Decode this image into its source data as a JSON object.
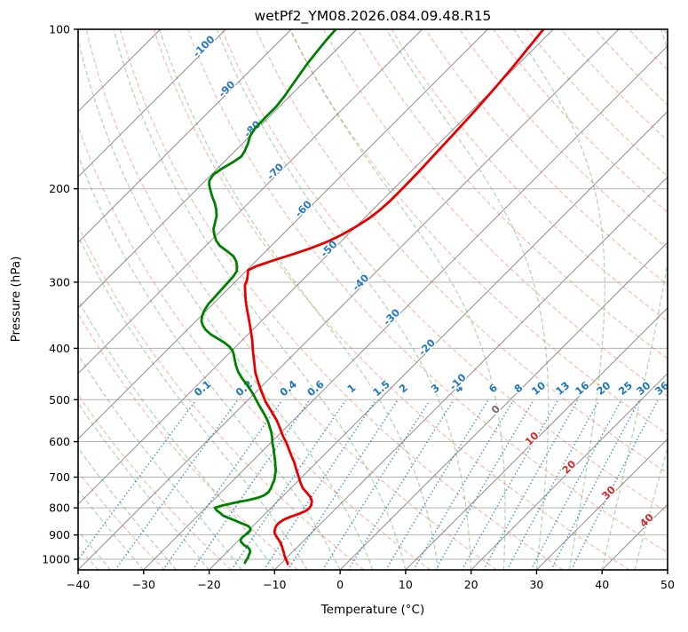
{
  "title": "wetPf2_YM08.2026.084.09.48.R15",
  "x_axis": {
    "label": "Temperature (°C)",
    "min": -40,
    "max": 50,
    "tick_values": [
      -40,
      -30,
      -20,
      -10,
      0,
      10,
      20,
      30,
      40,
      50
    ],
    "tick_labels": [
      "−40",
      "−30",
      "−20",
      "−10",
      "0",
      "10",
      "20",
      "30",
      "40",
      "50"
    ]
  },
  "y_axis": {
    "label": "Pressure (hPa)",
    "min": 100,
    "max": 1048,
    "scale": "log",
    "tick_values": [
      100,
      200,
      300,
      400,
      500,
      600,
      700,
      800,
      900,
      1000
    ],
    "tick_labels": [
      "100",
      "200",
      "300",
      "400",
      "500",
      "600",
      "700",
      "800",
      "900",
      "1000"
    ]
  },
  "chart_data": {
    "type": "line",
    "variant": "skew-t-log-p",
    "title": "wetPf2_YM08.2026.084.09.48.R15",
    "xlabel": "Temperature (°C)",
    "ylabel": "Pressure (hPa)",
    "xlim": [
      -40,
      50
    ],
    "ylim": [
      1048,
      100
    ],
    "grid": "pressure gridlines horizontal, isotherms skewed 45°",
    "legend": "none",
    "series": [
      {
        "name": "temperature",
        "color": "#e60000",
        "points_p_T": [
          [
            100,
            -51.5
          ],
          [
            108,
            -51.0
          ],
          [
            118,
            -50.4
          ],
          [
            130,
            -49.9
          ],
          [
            143,
            -49.5
          ],
          [
            158,
            -49.2
          ],
          [
            172,
            -49.0
          ],
          [
            185,
            -48.8
          ],
          [
            200,
            -48.7
          ],
          [
            210,
            -48.7
          ],
          [
            220,
            -48.9
          ],
          [
            228,
            -49.3
          ],
          [
            236,
            -50.0
          ],
          [
            244,
            -50.9
          ],
          [
            252,
            -52.1
          ],
          [
            259,
            -53.6
          ],
          [
            265,
            -55.2
          ],
          [
            272,
            -57.2
          ],
          [
            280,
            -59.2
          ],
          [
            285,
            -59.8
          ],
          [
            291,
            -59.1
          ],
          [
            298,
            -58.4
          ],
          [
            304,
            -58.0
          ],
          [
            315,
            -56.7
          ],
          [
            327,
            -55.3
          ],
          [
            340,
            -53.7
          ],
          [
            355,
            -51.9
          ],
          [
            370,
            -50.2
          ],
          [
            386,
            -48.5
          ],
          [
            406,
            -46.6
          ],
          [
            424,
            -44.9
          ],
          [
            444,
            -43.1
          ],
          [
            463,
            -41.2
          ],
          [
            486,
            -38.9
          ],
          [
            505,
            -37.0
          ],
          [
            525,
            -34.8
          ],
          [
            547,
            -32.5
          ],
          [
            566,
            -30.8
          ],
          [
            584,
            -29.3
          ],
          [
            603,
            -27.6
          ],
          [
            622,
            -26.1
          ],
          [
            640,
            -24.7
          ],
          [
            658,
            -23.3
          ],
          [
            676,
            -22.1
          ],
          [
            695,
            -20.8
          ],
          [
            715,
            -19.5
          ],
          [
            734,
            -18.2
          ],
          [
            750,
            -16.8
          ],
          [
            764,
            -15.6
          ],
          [
            777,
            -14.8
          ],
          [
            790,
            -14.3
          ],
          [
            802,
            -14.1
          ],
          [
            812,
            -14.3
          ],
          [
            822,
            -14.9
          ],
          [
            832,
            -15.7
          ],
          [
            843,
            -16.3
          ],
          [
            853,
            -16.5
          ],
          [
            863,
            -16.5
          ],
          [
            873,
            -16.3
          ],
          [
            882,
            -16.0
          ],
          [
            891,
            -15.7
          ],
          [
            900,
            -15.2
          ],
          [
            908,
            -14.7
          ],
          [
            917,
            -14.1
          ],
          [
            925,
            -13.6
          ],
          [
            937,
            -12.9
          ],
          [
            949,
            -12.3
          ],
          [
            960,
            -11.8
          ],
          [
            972,
            -11.2
          ],
          [
            984,
            -10.7
          ],
          [
            996,
            -10.1
          ],
          [
            1008,
            -9.5
          ],
          [
            1016,
            -9.1
          ],
          [
            1021,
            -8.9
          ]
        ]
      },
      {
        "name": "dewpoint",
        "color": "#008000",
        "points_p_T": [
          [
            100,
            -83.2
          ],
          [
            105,
            -83.0
          ],
          [
            110,
            -82.7
          ],
          [
            116,
            -82.3
          ],
          [
            122,
            -81.8
          ],
          [
            128,
            -81.3
          ],
          [
            134,
            -80.8
          ],
          [
            140,
            -80.5
          ],
          [
            147,
            -80.5
          ],
          [
            154,
            -80.4
          ],
          [
            159,
            -80.0
          ],
          [
            164,
            -79.2
          ],
          [
            170,
            -78.5
          ],
          [
            174,
            -78.2
          ],
          [
            178,
            -78.6
          ],
          [
            183,
            -79.3
          ],
          [
            188,
            -79.7
          ],
          [
            193,
            -79.4
          ],
          [
            197,
            -78.7
          ],
          [
            202,
            -77.6
          ],
          [
            207,
            -76.5
          ],
          [
            213,
            -75.1
          ],
          [
            219,
            -73.9
          ],
          [
            225,
            -72.9
          ],
          [
            231,
            -72.2
          ],
          [
            238,
            -71.4
          ],
          [
            244,
            -70.4
          ],
          [
            250,
            -69.3
          ],
          [
            256,
            -67.9
          ],
          [
            262,
            -66.0
          ],
          [
            268,
            -64.2
          ],
          [
            274,
            -63.0
          ],
          [
            280,
            -62.1
          ],
          [
            286,
            -61.4
          ],
          [
            293,
            -61.1
          ],
          [
            302,
            -61.0
          ],
          [
            311,
            -60.9
          ],
          [
            320,
            -60.8
          ],
          [
            330,
            -60.7
          ],
          [
            340,
            -60.3
          ],
          [
            348,
            -59.8
          ],
          [
            355,
            -59.2
          ],
          [
            362,
            -58.3
          ],
          [
            369,
            -57.2
          ],
          [
            376,
            -55.8
          ],
          [
            383,
            -54.1
          ],
          [
            390,
            -52.4
          ],
          [
            397,
            -51.0
          ],
          [
            404,
            -49.9
          ],
          [
            412,
            -49.0
          ],
          [
            421,
            -48.1
          ],
          [
            431,
            -47.1
          ],
          [
            443,
            -45.8
          ],
          [
            455,
            -44.3
          ],
          [
            467,
            -42.7
          ],
          [
            478,
            -41.3
          ],
          [
            490,
            -39.9
          ],
          [
            502,
            -38.6
          ],
          [
            517,
            -37.0
          ],
          [
            532,
            -35.4
          ],
          [
            546,
            -34.0
          ],
          [
            560,
            -32.8
          ],
          [
            575,
            -31.6
          ],
          [
            589,
            -30.6
          ],
          [
            602,
            -29.8
          ],
          [
            618,
            -28.7
          ],
          [
            634,
            -27.7
          ],
          [
            650,
            -26.7
          ],
          [
            666,
            -25.8
          ],
          [
            680,
            -25.0
          ],
          [
            694,
            -24.4
          ],
          [
            708,
            -23.8
          ],
          [
            722,
            -23.4
          ],
          [
            736,
            -23.0
          ],
          [
            748,
            -22.8
          ],
          [
            758,
            -23.0
          ],
          [
            766,
            -23.6
          ],
          [
            774,
            -24.8
          ],
          [
            782,
            -26.3
          ],
          [
            791,
            -27.7
          ],
          [
            800,
            -28.6
          ],
          [
            808,
            -28.0
          ],
          [
            818,
            -27.0
          ],
          [
            827,
            -26.2
          ],
          [
            836,
            -24.9
          ],
          [
            845,
            -23.6
          ],
          [
            853,
            -22.5
          ],
          [
            860,
            -21.5
          ],
          [
            867,
            -20.6
          ],
          [
            875,
            -20.0
          ],
          [
            883,
            -19.7
          ],
          [
            891,
            -19.7
          ],
          [
            900,
            -19.8
          ],
          [
            910,
            -19.9
          ],
          [
            918,
            -19.8
          ],
          [
            926,
            -19.5
          ],
          [
            933,
            -19.0
          ],
          [
            941,
            -18.4
          ],
          [
            950,
            -17.5
          ],
          [
            959,
            -16.9
          ],
          [
            968,
            -16.5
          ],
          [
            977,
            -16.3
          ],
          [
            986,
            -16.1
          ],
          [
            995,
            -15.9
          ],
          [
            1004,
            -15.8
          ],
          [
            1011,
            -15.7
          ],
          [
            1016,
            -15.6
          ]
        ]
      }
    ],
    "pressure_gridlines": [
      100,
      200,
      300,
      400,
      500,
      600,
      700,
      800,
      900,
      1000
    ],
    "isotherms": {
      "start": -110,
      "end": 50,
      "step": 10,
      "color": "#8f8f8f"
    },
    "isotherm_labels": [
      {
        "t": -100,
        "y": 55,
        "color": "#2878be"
      },
      {
        "t": -90,
        "y": 103,
        "color": "#2878be"
      },
      {
        "t": -80,
        "y": 148,
        "color": "#2878be"
      },
      {
        "t": -70,
        "y": 196,
        "color": "#2878be"
      },
      {
        "t": -60,
        "y": 238,
        "color": "#2878be"
      },
      {
        "t": -50,
        "y": 283,
        "color": "#2878be"
      },
      {
        "t": -40,
        "y": 321,
        "color": "#2878be"
      },
      {
        "t": -30,
        "y": 360,
        "color": "#2878be"
      },
      {
        "t": -20,
        "y": 394,
        "color": "#2878be"
      },
      {
        "t": -10,
        "y": 433,
        "color": "#2878be"
      },
      {
        "t": 0,
        "y": 464,
        "color": "#6e6e6e"
      },
      {
        "t": 10,
        "y": 497,
        "color": "#cf2b2b"
      },
      {
        "t": 20,
        "y": 529,
        "color": "#cf2b2b"
      },
      {
        "t": 30,
        "y": 558,
        "color": "#cf2b2b"
      },
      {
        "t": 40,
        "y": 589,
        "color": "#cf2b2b"
      }
    ],
    "dry_adiabats": {
      "theta_start": -50,
      "theta_end": 200,
      "step": 10,
      "color": "rgba(237,88,56,0.38)"
    },
    "moist_adiabats": {
      "t_start": -40,
      "t_end": 45,
      "step": 5,
      "color": "rgba(52,150,60,0.38)"
    },
    "mixing_ratio_lines": {
      "values_g_kg": [
        0.1,
        0.2,
        0.4,
        0.6,
        1,
        1.5,
        2,
        3,
        4,
        6,
        8,
        10,
        13,
        16,
        20,
        25,
        30,
        36
      ],
      "p_top": 490,
      "p_bottom": 1048,
      "line_color": "rgba(31,119,180,0.85)",
      "label_color": "#1f77b4",
      "label_pressure": 476
    }
  }
}
